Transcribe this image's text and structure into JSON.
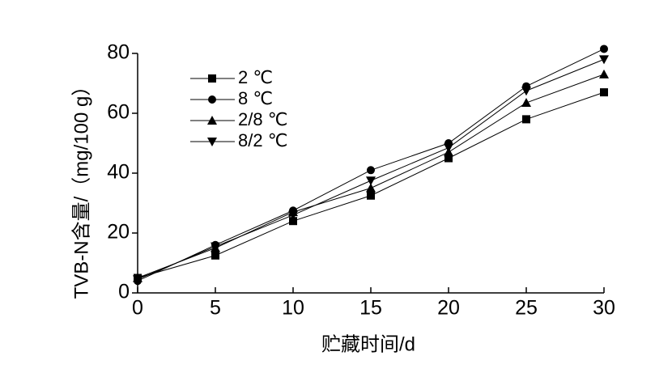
{
  "chart_data": {
    "type": "line",
    "x_label": "贮藏时间/d",
    "y_label": "TVB-N含量/（mg/100 g）",
    "x": [
      0,
      5,
      10,
      15,
      20,
      25,
      30
    ],
    "series": [
      {
        "name": "2 ℃",
        "color": "#000000",
        "marker": "square",
        "values": [
          5,
          12.5,
          24,
          32.5,
          45,
          58,
          67
        ]
      },
      {
        "name": "8 ℃",
        "color": "#000000",
        "marker": "circle",
        "values": [
          4,
          16,
          27.5,
          41,
          50,
          69,
          81.5
        ]
      },
      {
        "name": "2/8 ℃",
        "color": "#000000",
        "marker": "triangle-up",
        "values": [
          5,
          15,
          27,
          35,
          47,
          63.5,
          73
        ]
      },
      {
        "name": "8/2 ℃",
        "color": "#000000",
        "marker": "triangle-down",
        "values": [
          4.5,
          15.5,
          26,
          37.5,
          48.5,
          67.5,
          78
        ]
      }
    ],
    "xlim": [
      0,
      30
    ],
    "xticks": [
      0,
      5,
      10,
      15,
      20,
      25,
      30
    ],
    "ylim": [
      0,
      80
    ],
    "yticks": [
      0,
      20,
      40,
      60,
      80
    ],
    "grid": false,
    "legend": "upper left"
  }
}
